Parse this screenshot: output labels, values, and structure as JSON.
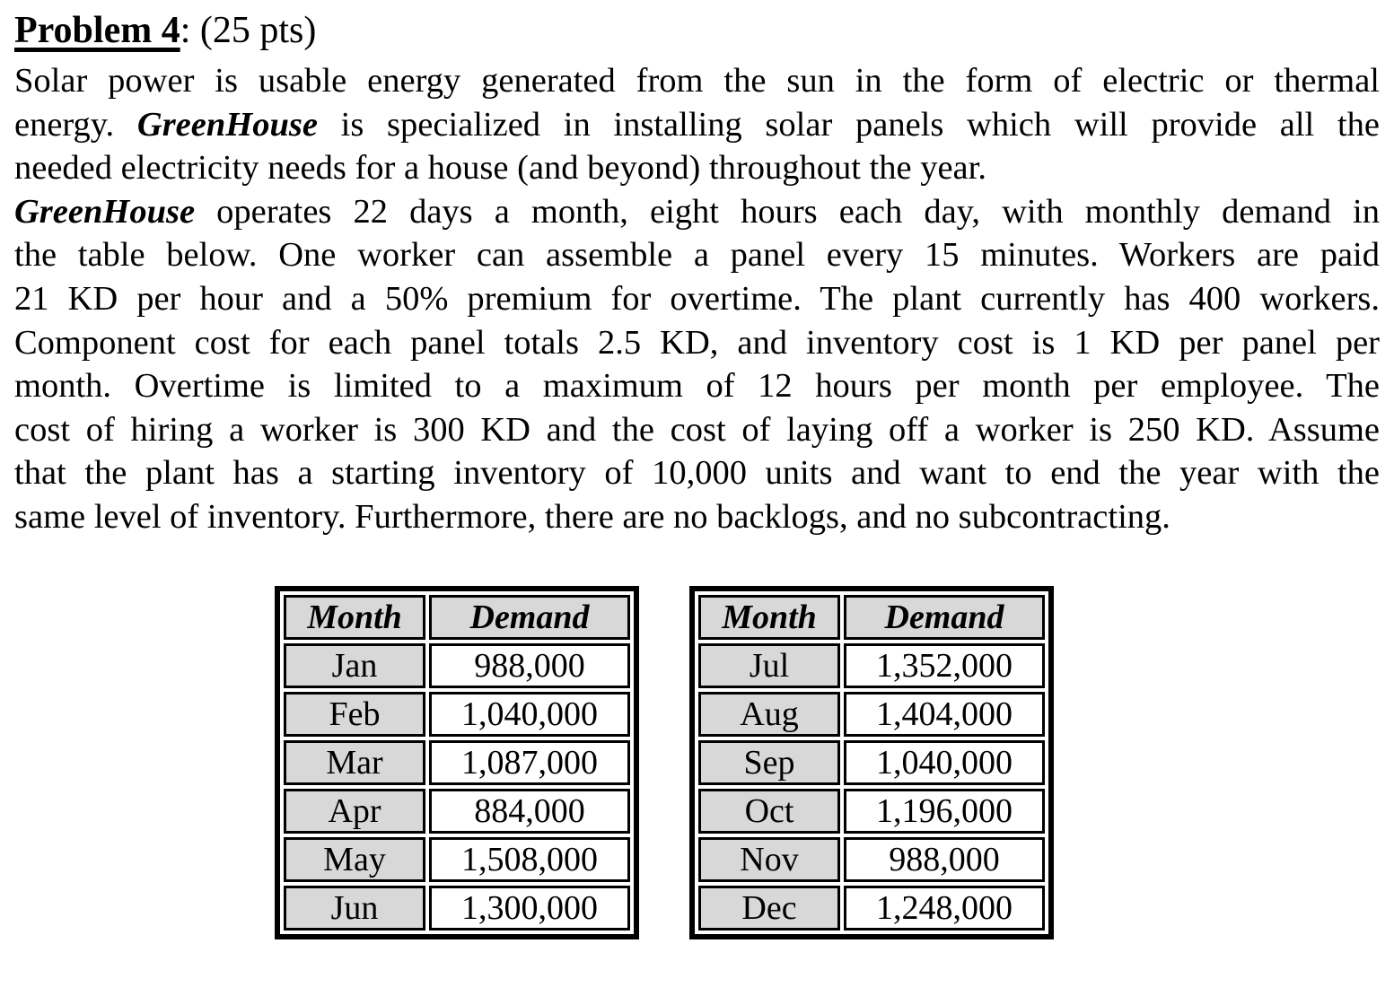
{
  "colors": {
    "page_bg": "#ffffff",
    "text": "#000000",
    "table_header_bg": "#d8d8d8",
    "month_cell_bg": "#d8d8d8",
    "table_border": "#000000"
  },
  "document": {
    "title": {
      "label": "Problem 4",
      "points": ": (25 pts)"
    },
    "body": {
      "l1": "Solar power is usable energy generated from the sun in the form of electric or thermal",
      "l2a": "energy. ",
      "l2brand": "GreenHouse",
      "l2b": " is specialized in installing solar panels which will provide all the",
      "l3": "needed electricity needs for a house (and beyond) throughout the year.",
      "l4brand": "GreenHouse",
      "l4b": " operates 22 days a month, eight hours each day, with monthly demand in",
      "l5": "the table below. One worker can assemble a panel every 15 minutes. Workers are paid",
      "l6": "21 KD per hour and a 50% premium for overtime. The plant currently has 400 workers.",
      "l7": "Component cost for each panel totals 2.5 KD, and inventory cost is 1 KD per panel per",
      "l8": "month. Overtime is limited to a maximum of 12 hours per month per employee.  The",
      "l9": "cost of hiring a worker is 300 KD and the cost of laying off a worker is 250 KD. Assume",
      "l10": "that the plant has a starting inventory of 10,000 units and want to end the year with the",
      "l11": "same level of inventory.  Furthermore, there are no backlogs, and no subcontracting."
    }
  },
  "demand_tables": {
    "headers": {
      "month": "Month",
      "demand": "Demand"
    },
    "left": [
      {
        "month": "Jan",
        "demand": "988,000"
      },
      {
        "month": "Feb",
        "demand": "1,040,000"
      },
      {
        "month": "Mar",
        "demand": "1,087,000"
      },
      {
        "month": "Apr",
        "demand": "884,000"
      },
      {
        "month": "May",
        "demand": "1,508,000"
      },
      {
        "month": "Jun",
        "demand": "1,300,000"
      }
    ],
    "right": [
      {
        "month": "Jul",
        "demand": "1,352,000"
      },
      {
        "month": "Aug",
        "demand": "1,404,000"
      },
      {
        "month": "Sep",
        "demand": "1,040,000"
      },
      {
        "month": "Oct",
        "demand": "1,196,000"
      },
      {
        "month": "Nov",
        "demand": "988,000"
      },
      {
        "month": "Dec",
        "demand": "1,248,000"
      }
    ]
  }
}
